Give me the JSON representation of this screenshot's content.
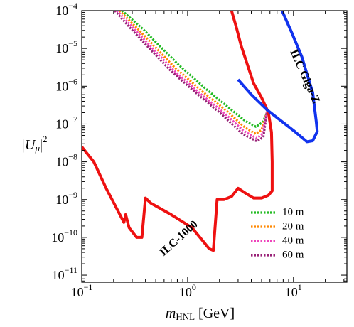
{
  "chart_data": {
    "type": "line",
    "log_x": true,
    "log_y": true,
    "xlim": [
      0.1,
      32
    ],
    "ylim": [
      6.5e-12,
      0.0001
    ],
    "xticks": [
      {
        "value": 0.1,
        "label": "10",
        "exponent": "−1"
      },
      {
        "value": 1,
        "label": "10",
        "exponent": "0"
      },
      {
        "value": 10,
        "label": "10",
        "exponent": "1"
      }
    ],
    "yticks": [
      {
        "value": 1e-11,
        "label": "10",
        "exponent": "−11"
      },
      {
        "value": 1e-10,
        "label": "10",
        "exponent": "−10"
      },
      {
        "value": 1e-09,
        "label": "10",
        "exponent": "−9"
      },
      {
        "value": 1e-08,
        "label": "10",
        "exponent": "−8"
      },
      {
        "value": 1e-07,
        "label": "10",
        "exponent": "−7"
      },
      {
        "value": 1e-06,
        "label": "10",
        "exponent": "−6"
      },
      {
        "value": 1e-05,
        "label": "10",
        "exponent": "−5"
      },
      {
        "value": 0.0001,
        "label": "10",
        "exponent": "−4"
      }
    ],
    "x_label": {
      "main": "m",
      "sub": "HNL",
      "after": " [GeV]"
    },
    "y_label": {
      "before": "|U",
      "sub": "μ",
      "after": "|",
      "sup": "2"
    },
    "legend": "lower right",
    "series": [
      {
        "name": "10 m",
        "color": "#22bb22",
        "style": "dotted",
        "x": [
          0.24,
          0.372,
          0.805,
          1.49,
          2.38,
          3.5,
          4.41,
          5.1,
          5.8
        ],
        "values": [
          0.0001,
          3.4e-05,
          3.9e-06,
          8.5e-07,
          2.9e-07,
          1.2e-07,
          8.5e-08,
          1.1e-07,
          2.3e-07
        ]
      },
      {
        "name": "20 m",
        "color": "#ff8800",
        "style": "dotted",
        "x": [
          0.227,
          0.35,
          0.75,
          1.4,
          2.3,
          3.5,
          4.4,
          5.0,
          5.6
        ],
        "values": [
          0.0001,
          3e-05,
          3.2e-06,
          7e-07,
          2.3e-07,
          8e-08,
          5.5e-08,
          7e-08,
          2e-07
        ]
      },
      {
        "name": "40 m",
        "color": "#ee44bb",
        "style": "dotted",
        "x": [
          0.215,
          0.33,
          0.72,
          1.35,
          2.2,
          3.4,
          4.5,
          5.1,
          5.6
        ],
        "values": [
          0.0001,
          2.8e-05,
          2.8e-06,
          6e-07,
          2e-07,
          6.5e-08,
          4.2e-08,
          5.5e-08,
          2e-07
        ]
      },
      {
        "name": "60 m",
        "color": "#992277",
        "style": "dotted",
        "x": [
          0.205,
          0.32,
          0.7,
          1.3,
          2.1,
          3.3,
          4.5,
          5.2,
          5.6
        ],
        "values": [
          0.0001,
          2.5e-05,
          2.5e-06,
          5.5e-07,
          1.8e-07,
          5.5e-08,
          3.5e-08,
          4.5e-08,
          2e-07
        ]
      },
      {
        "name": "ILC-1000",
        "color": "#ee1111",
        "style": "solid",
        "x": [
          0.1,
          0.13,
          0.17,
          0.22,
          0.25,
          0.26,
          0.28,
          0.33,
          0.37,
          0.4,
          0.45,
          0.7,
          1.1,
          1.6,
          1.75,
          1.9,
          2.2,
          2.6,
          3.0,
          3.5,
          4.2,
          5.0,
          5.8,
          6.3,
          6.3,
          6.2,
          5.8,
          5.0,
          4.2,
          3.7,
          3.2,
          2.9,
          2.6
        ],
        "values": [
          2.5e-08,
          1e-08,
          2e-09,
          5e-10,
          2.5e-10,
          4e-10,
          1.8e-10,
          1e-10,
          1e-10,
          1.1e-09,
          8e-10,
          4e-10,
          1.8e-10,
          5e-11,
          4.5e-11,
          1e-09,
          1e-09,
          1.2e-09,
          2e-09,
          1.5e-09,
          1.1e-09,
          1.1e-09,
          1.3e-09,
          1.7e-09,
          1e-08,
          6e-08,
          2e-07,
          5e-07,
          1.2e-06,
          3.5e-06,
          1.2e-05,
          3.5e-05,
          0.0001
        ]
      },
      {
        "name": "ILC Giga-Z",
        "color": "#1133ee",
        "style": "solid",
        "x": [
          3.0,
          4.0,
          5.7,
          8,
          10.3,
          13.4,
          15.2,
          16.8,
          16.4,
          15.2,
          13.5,
          12.0,
          9.6,
          7.8
        ],
        "values": [
          1.5e-06,
          6e-07,
          2.3e-07,
          1.1e-07,
          6.3e-08,
          3.4e-08,
          3.6e-08,
          6.3e-08,
          1.2e-07,
          6.8e-07,
          2e-06,
          6e-06,
          2.7e-05,
          0.0001
        ]
      }
    ]
  }
}
